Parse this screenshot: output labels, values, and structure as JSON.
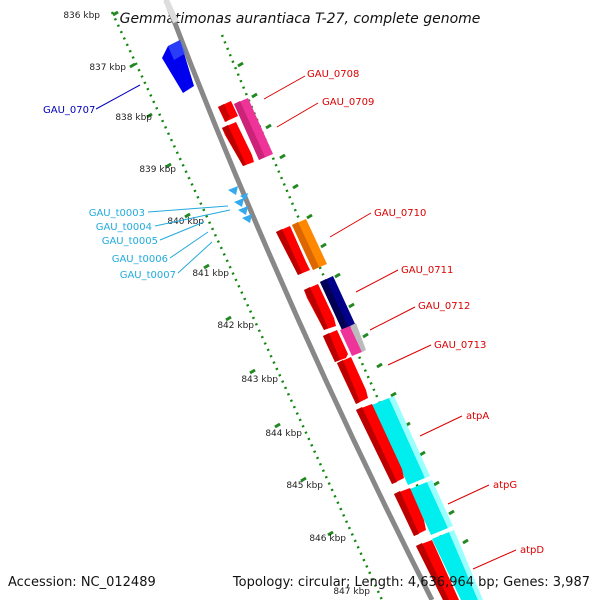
{
  "title": "Gemmatimonas aurantiaca T-27, complete genome",
  "accession": "Accession: NC_012489",
  "topology": "Topology: circular; Length: 4,636,964 bp; Genes: 3,987",
  "colors": {
    "cds_red": "#ff0000",
    "gene_red": "#ee0000",
    "magenta": "#ee3399",
    "blue": "#0000ee",
    "navy": "#000088",
    "orange": "#ff8800",
    "cyan": "#00eeee",
    "trna": "#33aaee",
    "backbone": "#888888",
    "tick_green": "#007700",
    "label_red": "#dd0000",
    "label_blue": "#0000bb",
    "label_cyan": "#22aadd"
  },
  "ticks": [
    "836 kbp",
    "837 kbp",
    "838 kbp",
    "839 kbp",
    "840 kbp",
    "841 kbp",
    "842 kbp",
    "843 kbp",
    "844 kbp",
    "845 kbp",
    "846 kbp",
    "847 kbp"
  ],
  "gene_labels": [
    {
      "name": "gene-label-GAU_0707",
      "text": "GAU_0707",
      "color": "blue"
    },
    {
      "name": "gene-label-GAU_0708",
      "text": "GAU_0708",
      "color": "red"
    },
    {
      "name": "gene-label-GAU_0709",
      "text": "GAU_0709",
      "color": "red"
    },
    {
      "name": "gene-label-GAU_0710",
      "text": "GAU_0710",
      "color": "red"
    },
    {
      "name": "gene-label-GAU_0711",
      "text": "GAU_0711",
      "color": "red"
    },
    {
      "name": "gene-label-GAU_0712",
      "text": "GAU_0712",
      "color": "red"
    },
    {
      "name": "gene-label-GAU_0713",
      "text": "GAU_0713",
      "color": "red"
    },
    {
      "name": "gene-label-atpA",
      "text": "atpA",
      "color": "red"
    },
    {
      "name": "gene-label-atpG",
      "text": "atpG",
      "color": "red"
    },
    {
      "name": "gene-label-atpD",
      "text": "atpD",
      "color": "red"
    },
    {
      "name": "gene-label-GAU_t0003",
      "text": "GAU_t0003",
      "color": "cyan"
    },
    {
      "name": "gene-label-GAU_t0004",
      "text": "GAU_t0004",
      "color": "cyan"
    },
    {
      "name": "gene-label-GAU_t0005",
      "text": "GAU_t0005",
      "color": "cyan"
    },
    {
      "name": "gene-label-GAU_t0006",
      "text": "GAU_t0006",
      "color": "cyan"
    },
    {
      "name": "gene-label-GAU_t0007",
      "text": "GAU_t0007",
      "color": "cyan"
    }
  ]
}
